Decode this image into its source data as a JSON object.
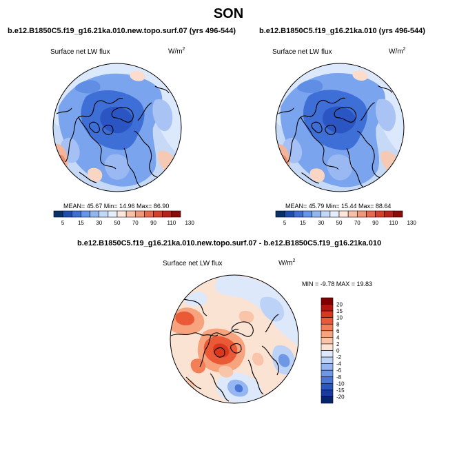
{
  "title": "SON",
  "panels": [
    {
      "title": "b.e12.B1850C5.f19_g16.21ka.010.new.topo.surf.07 (yrs 496-544)",
      "variable": "Surface net LW flux",
      "units": "W/m",
      "units_exp": "2",
      "stats": "MEAN=  45.67  Min=  14.96  Max=  86.90"
    },
    {
      "title": "b.e12.B1850C5.f19_g16.21ka.010 (yrs 496-544)",
      "variable": "Surface net LW flux",
      "units": "W/m",
      "units_exp": "2",
      "stats": "MEAN=  45.79  Min=  15.44  Max=  88.64"
    },
    {
      "title": "b.e12.B1850C5.f19_g16.21ka.010.new.topo.surf.07 - b.e12.B1850C5.f19_g16.21ka.010",
      "variable": "Surface net LW flux",
      "units": "W/m",
      "units_exp": "2",
      "stats": "MIN =  -9.78 MAX =  19.83"
    }
  ],
  "colorbar_abs": {
    "labels": [
      "5",
      "15",
      "30",
      "50",
      "70",
      "90",
      "110",
      "130"
    ],
    "colors": [
      "#08306b",
      "#1c4fb0",
      "#3d6fd6",
      "#6495ed",
      "#92b6f2",
      "#c3d7f8",
      "#e6eefc",
      "#fde6dc",
      "#f8c0a8",
      "#f2967a",
      "#e86a4e",
      "#d6402b",
      "#b8201a",
      "#8c0a0a"
    ]
  },
  "colorbar_diff": {
    "labels": [
      "20",
      "15",
      "10",
      "8",
      "6",
      "4",
      "2",
      "0",
      "-2",
      "-4",
      "-6",
      "-8",
      "-10",
      "-15",
      "-20"
    ],
    "colors": [
      "#7f0000",
      "#b3160f",
      "#d9381f",
      "#ea5a37",
      "#f37f58",
      "#f7a37e",
      "#f9c5aa",
      "#fbe3d4",
      "#dde8fa",
      "#bcd2f6",
      "#95b6f0",
      "#6e97e6",
      "#4a77d6",
      "#2a56c0",
      "#173ba2",
      "#08246e"
    ]
  }
}
